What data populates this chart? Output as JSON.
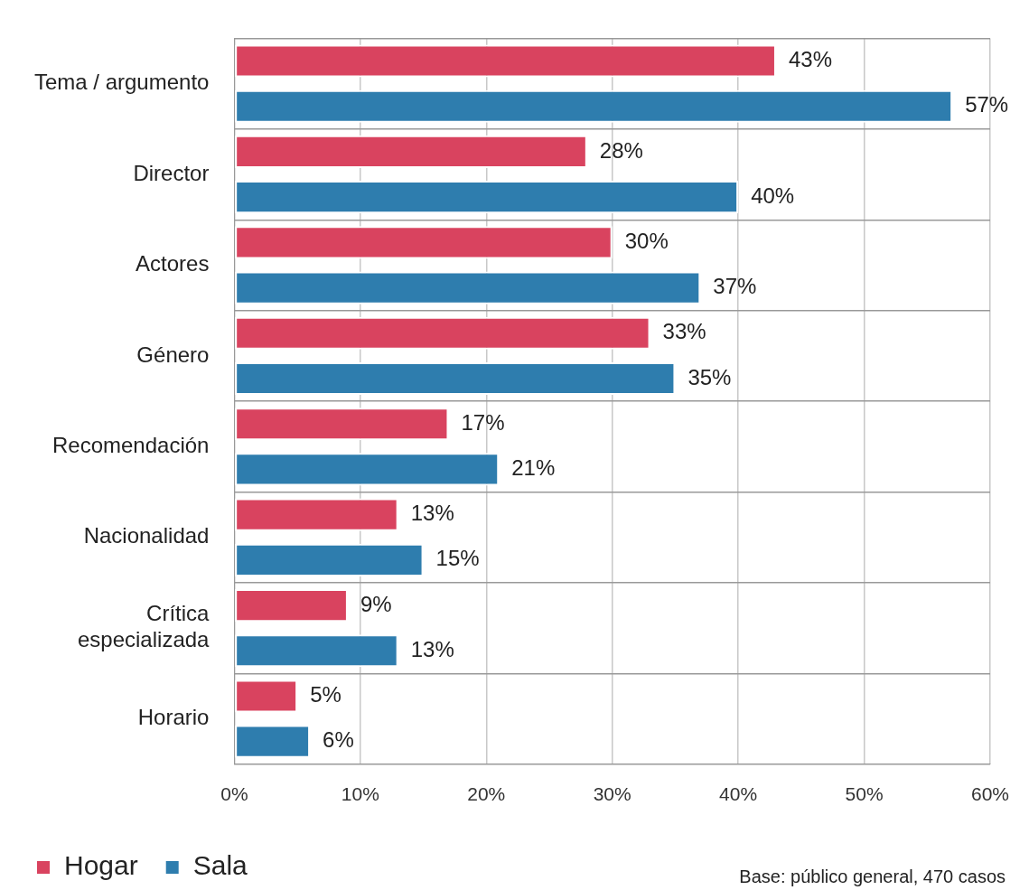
{
  "chart_data": {
    "type": "bar",
    "orientation": "horizontal",
    "categories": [
      "Tema / argumento",
      "Director",
      "Actores",
      "Género",
      "Recomendación",
      "Nacionalidad",
      "Crítica\nespecializada",
      "Horario"
    ],
    "series": [
      {
        "name": "Hogar",
        "color": "#d9435f",
        "values": [
          43,
          28,
          30,
          33,
          17,
          13,
          9,
          5
        ],
        "value_labels": [
          "43%",
          "28%",
          "30%",
          "33%",
          "17%",
          "13%",
          "9%",
          "5%"
        ]
      },
      {
        "name": "Sala",
        "color": "#2e7dae",
        "values": [
          57,
          40,
          37,
          35,
          21,
          15,
          13,
          6
        ],
        "value_labels": [
          "57%",
          "40%",
          "37%",
          "35%",
          "21%",
          "15%",
          "13%",
          "6%"
        ]
      }
    ],
    "xlim": [
      0,
      60
    ],
    "xticks": [
      {
        "value": 0,
        "label": "0%"
      },
      {
        "value": 10,
        "label": "10%"
      },
      {
        "value": 20,
        "label": "20%"
      },
      {
        "value": 30,
        "label": "30%"
      },
      {
        "value": 40,
        "label": "40%"
      },
      {
        "value": 50,
        "label": "50%"
      },
      {
        "value": 60,
        "label": "60%"
      }
    ],
    "grid": true,
    "legend": "bottom left",
    "annotations": [
      "Base: público general, 470 casos"
    ]
  }
}
